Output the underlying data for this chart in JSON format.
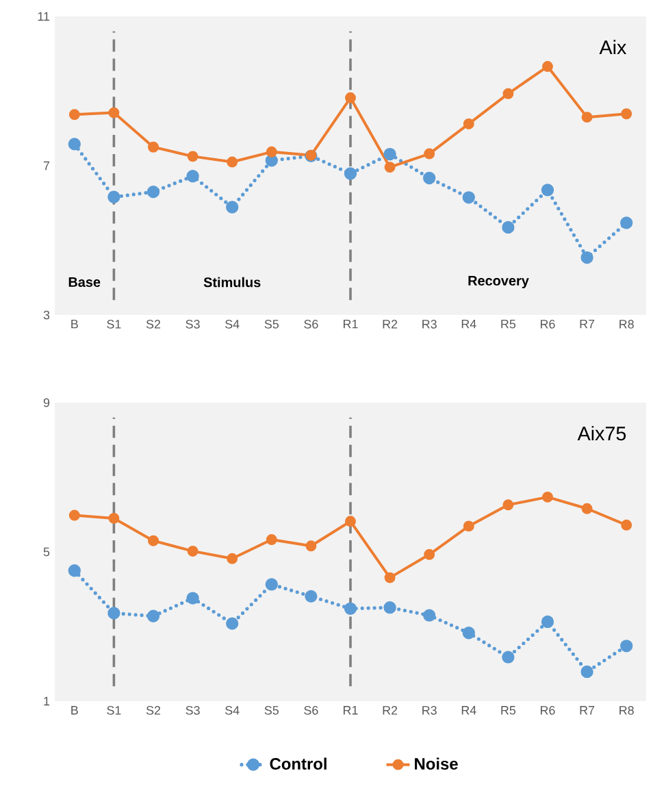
{
  "chart_data": [
    {
      "type": "line",
      "title": "Aix",
      "categories": [
        "B",
        "S1",
        "S2",
        "S3",
        "S4",
        "S5",
        "S6",
        "R1",
        "R2",
        "R3",
        "R4",
        "R5",
        "R6",
        "R7",
        "R8"
      ],
      "series": [
        {
          "color": "#5b9bd5",
          "line_style": "dotted",
          "values": [
            7.58,
            6.16,
            6.3,
            6.72,
            5.89,
            7.14,
            7.26,
            6.79,
            7.31,
            6.67,
            6.15,
            5.35,
            6.35,
            4.54,
            5.47
          ]
        },
        {
          "color": "#ed7d31",
          "line_style": "solid",
          "values": [
            8.37,
            8.42,
            7.5,
            7.25,
            7.1,
            7.37,
            7.28,
            8.82,
            6.96,
            7.32,
            8.12,
            8.93,
            9.66,
            8.3,
            8.39
          ]
        }
      ],
      "ylim": [
        3,
        11
      ],
      "yticks": [
        3,
        7,
        11
      ],
      "marker": "circle",
      "legend": false,
      "grid": false,
      "ref_lines": [
        {
          "axis": "x",
          "value": "S1",
          "color": "#7f7f7f",
          "line_style": "dashed"
        },
        {
          "axis": "x",
          "value": "R1",
          "color": "#7f7f7f",
          "line_style": "dashed"
        }
      ],
      "annotations": [
        "Base",
        "Stimulus",
        "Recovery"
      ]
    },
    {
      "type": "line",
      "title": "Aix75",
      "categories": [
        "B",
        "S1",
        "S2",
        "S3",
        "S4",
        "S5",
        "S6",
        "R1",
        "R2",
        "R3",
        "R4",
        "R5",
        "R6",
        "R7",
        "R8"
      ],
      "series": [
        {
          "name": "Control",
          "color": "#5b9bd5",
          "line_style": "dotted",
          "values": [
            4.5,
            3.36,
            3.28,
            3.76,
            3.08,
            4.13,
            3.81,
            3.48,
            3.51,
            3.3,
            2.83,
            2.18,
            3.13,
            1.79,
            2.48
          ]
        },
        {
          "name": "Noise",
          "color": "#ed7d31",
          "line_style": "solid",
          "values": [
            5.98,
            5.9,
            5.3,
            5.02,
            4.82,
            5.33,
            5.16,
            5.82,
            4.31,
            4.93,
            5.69,
            6.26,
            6.47,
            6.16,
            5.72
          ]
        }
      ],
      "ylim": [
        1,
        9
      ],
      "yticks": [
        1,
        5,
        9
      ],
      "marker": "circle",
      "legend": "bottom",
      "grid": false,
      "ref_lines": [
        {
          "axis": "x",
          "value": "S1",
          "color": "#7f7f7f",
          "line_style": "dashed"
        },
        {
          "axis": "x",
          "value": "R1",
          "color": "#7f7f7f",
          "line_style": "dashed"
        }
      ]
    }
  ]
}
